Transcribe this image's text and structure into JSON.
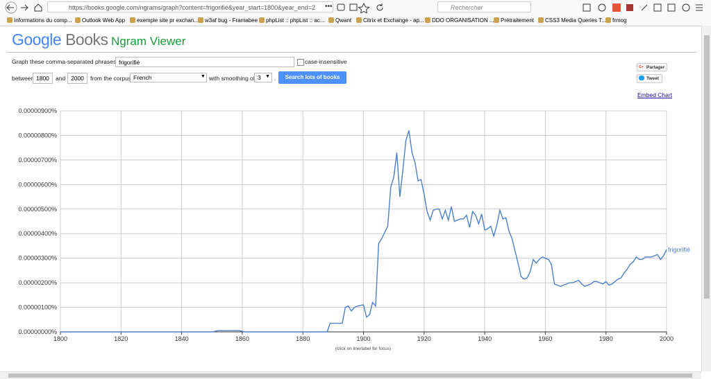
{
  "browser": {
    "url": "https://books.google.com/ngrams/graph?content=frigorifié&year_start=1800&year_end=2",
    "search_placeholder": "Rechercher",
    "bookmarks": [
      "Informations du comp...",
      "Outlook Web App",
      "exemple site pr exchan...",
      "w3af bug - Framabee",
      "phpList :: phpList :: ac...",
      "Qwant",
      "Citrix et Exchange - ap...",
      "DDO ORGANISATION ...",
      "Prétraitement",
      "CSS3 Media Queries T...",
      "frmog"
    ]
  },
  "header": {
    "logo_google": "Google",
    "logo_books": "Books",
    "title": "Ngram Viewer"
  },
  "form": {
    "phrases_label": "Graph these comma-separated phrases:",
    "phrases": "frigorifié",
    "case_label": "case-insensitive",
    "between_label": "between",
    "year_start": "1800",
    "and_label": "and",
    "year_end": "2000",
    "corpus_label": "from the corpus",
    "corpus": "French",
    "smoothing_label": "with smoothing of",
    "smoothing": "3",
    "period": ".",
    "search_button": "Search lots of books"
  },
  "side": {
    "share": "Partager",
    "tweet": "Tweet",
    "embed": "Embed Chart"
  },
  "chart_data": {
    "type": "line",
    "footnote": "(click on line/label for focus)",
    "x": [
      1800,
      1850,
      1852,
      1859,
      1861,
      1888,
      1889,
      1890,
      1891,
      1892,
      1893,
      1894,
      1895,
      1896,
      1897,
      1898,
      1899,
      1900,
      1901,
      1902,
      1903,
      1904,
      1905,
      1906,
      1907,
      1908,
      1909,
      1910,
      1911,
      1912,
      1913,
      1914,
      1915,
      1916,
      1917,
      1918,
      1919,
      1920,
      1921,
      1922,
      1923,
      1924,
      1925,
      1926,
      1927,
      1928,
      1929,
      1930,
      1931,
      1932,
      1933,
      1934,
      1935,
      1936,
      1937,
      1938,
      1939,
      1940,
      1941,
      1942,
      1943,
      1944,
      1945,
      1946,
      1947,
      1948,
      1949,
      1950,
      1951,
      1952,
      1953,
      1954,
      1955,
      1956,
      1957,
      1958,
      1959,
      1960,
      1961,
      1962,
      1963,
      1964,
      1965,
      1966,
      1967,
      1968,
      1969,
      1970,
      1971,
      1972,
      1973,
      1974,
      1975,
      1976,
      1977,
      1978,
      1979,
      1980,
      1981,
      1982,
      1983,
      1984,
      1985,
      1986,
      1987,
      1988,
      1989,
      1990,
      1991,
      1992,
      1993,
      1994,
      1995,
      1996,
      1997,
      1998,
      1999,
      2000
    ],
    "series": [
      {
        "name": "frigorifié",
        "color": "#4a7fcb",
        "values": [
          0,
          0,
          5e-08,
          5e-08,
          0,
          0,
          3.5e-07,
          3.5e-07,
          3.5e-07,
          3.5e-07,
          3.5e-07,
          1e-06,
          1.05e-06,
          8.5e-07,
          1e-06,
          1.05e-06,
          1.08e-06,
          1.1e-06,
          6e-07,
          7e-07,
          1.2e-06,
          1.05e-06,
          3.6e-06,
          3.8e-06,
          4.05e-06,
          4.3e-06,
          5.9e-06,
          6.3e-06,
          7.3e-06,
          5.5e-06,
          6.6e-06,
          7.8e-06,
          8.2e-06,
          7.3e-06,
          6.9e-06,
          6.15e-06,
          6.2e-06,
          5.6e-06,
          4.9e-06,
          4.55e-06,
          4.95e-06,
          5e-06,
          5e-06,
          4.6e-06,
          4.95e-06,
          4.55e-06,
          5.1e-06,
          4.5e-06,
          4.55e-06,
          4.6e-06,
          4.6e-06,
          4.75e-06,
          4.25e-06,
          4.9e-06,
          4.75e-06,
          4.4e-06,
          4.8e-06,
          4.15e-06,
          4.2e-06,
          4.3e-06,
          3.9e-06,
          4.35e-06,
          4.95e-06,
          4.6e-06,
          4.65e-06,
          4.1e-06,
          3.8e-06,
          3.3e-06,
          2.8e-06,
          2.25e-06,
          2.15e-06,
          2.2e-06,
          2.45e-06,
          2.95e-06,
          2.8e-06,
          2.95e-06,
          3.05e-06,
          3e-06,
          2.95e-06,
          2.75e-06,
          1.95e-06,
          1.9e-06,
          1.85e-06,
          1.9e-06,
          1.95e-06,
          2e-06,
          2e-06,
          2.05e-06,
          2.1e-06,
          1.95e-06,
          1.85e-06,
          1.9e-06,
          1.95e-06,
          2.05e-06,
          2.05e-06,
          2e-06,
          1.95e-06,
          2.05e-06,
          1.9e-06,
          1.95e-06,
          2.05e-06,
          2.15e-06,
          2.2e-06,
          2.4e-06,
          2.55e-06,
          2.75e-06,
          2.85e-06,
          3.05e-06,
          2.95e-06,
          2.95e-06,
          3.05e-06,
          3.05e-06,
          3.05e-06,
          3.1e-06,
          3.15e-06,
          2.95e-06,
          3.1e-06,
          3.35e-06
        ]
      }
    ],
    "xlim": [
      1800,
      2000
    ],
    "xticks": [
      1800,
      1820,
      1840,
      1860,
      1880,
      1900,
      1920,
      1940,
      1960,
      1980,
      2000
    ],
    "ylim": [
      0,
      9e-06
    ],
    "yticks": [
      {
        "value": 0,
        "label": "0.00000000%"
      },
      {
        "value": 1e-06,
        "label": "0.00000100%"
      },
      {
        "value": 2e-06,
        "label": "0.00000200%"
      },
      {
        "value": 3e-06,
        "label": "0.00000300%"
      },
      {
        "value": 4e-06,
        "label": "0.00000400%"
      },
      {
        "value": 5e-06,
        "label": "0.00000500%"
      },
      {
        "value": 6e-06,
        "label": "0.00000600%"
      },
      {
        "value": 7e-06,
        "label": "0.00000700%"
      },
      {
        "value": 8e-06,
        "label": "0.00000800%"
      },
      {
        "value": 9e-06,
        "label": "0.00000900%"
      }
    ],
    "grid": true
  }
}
